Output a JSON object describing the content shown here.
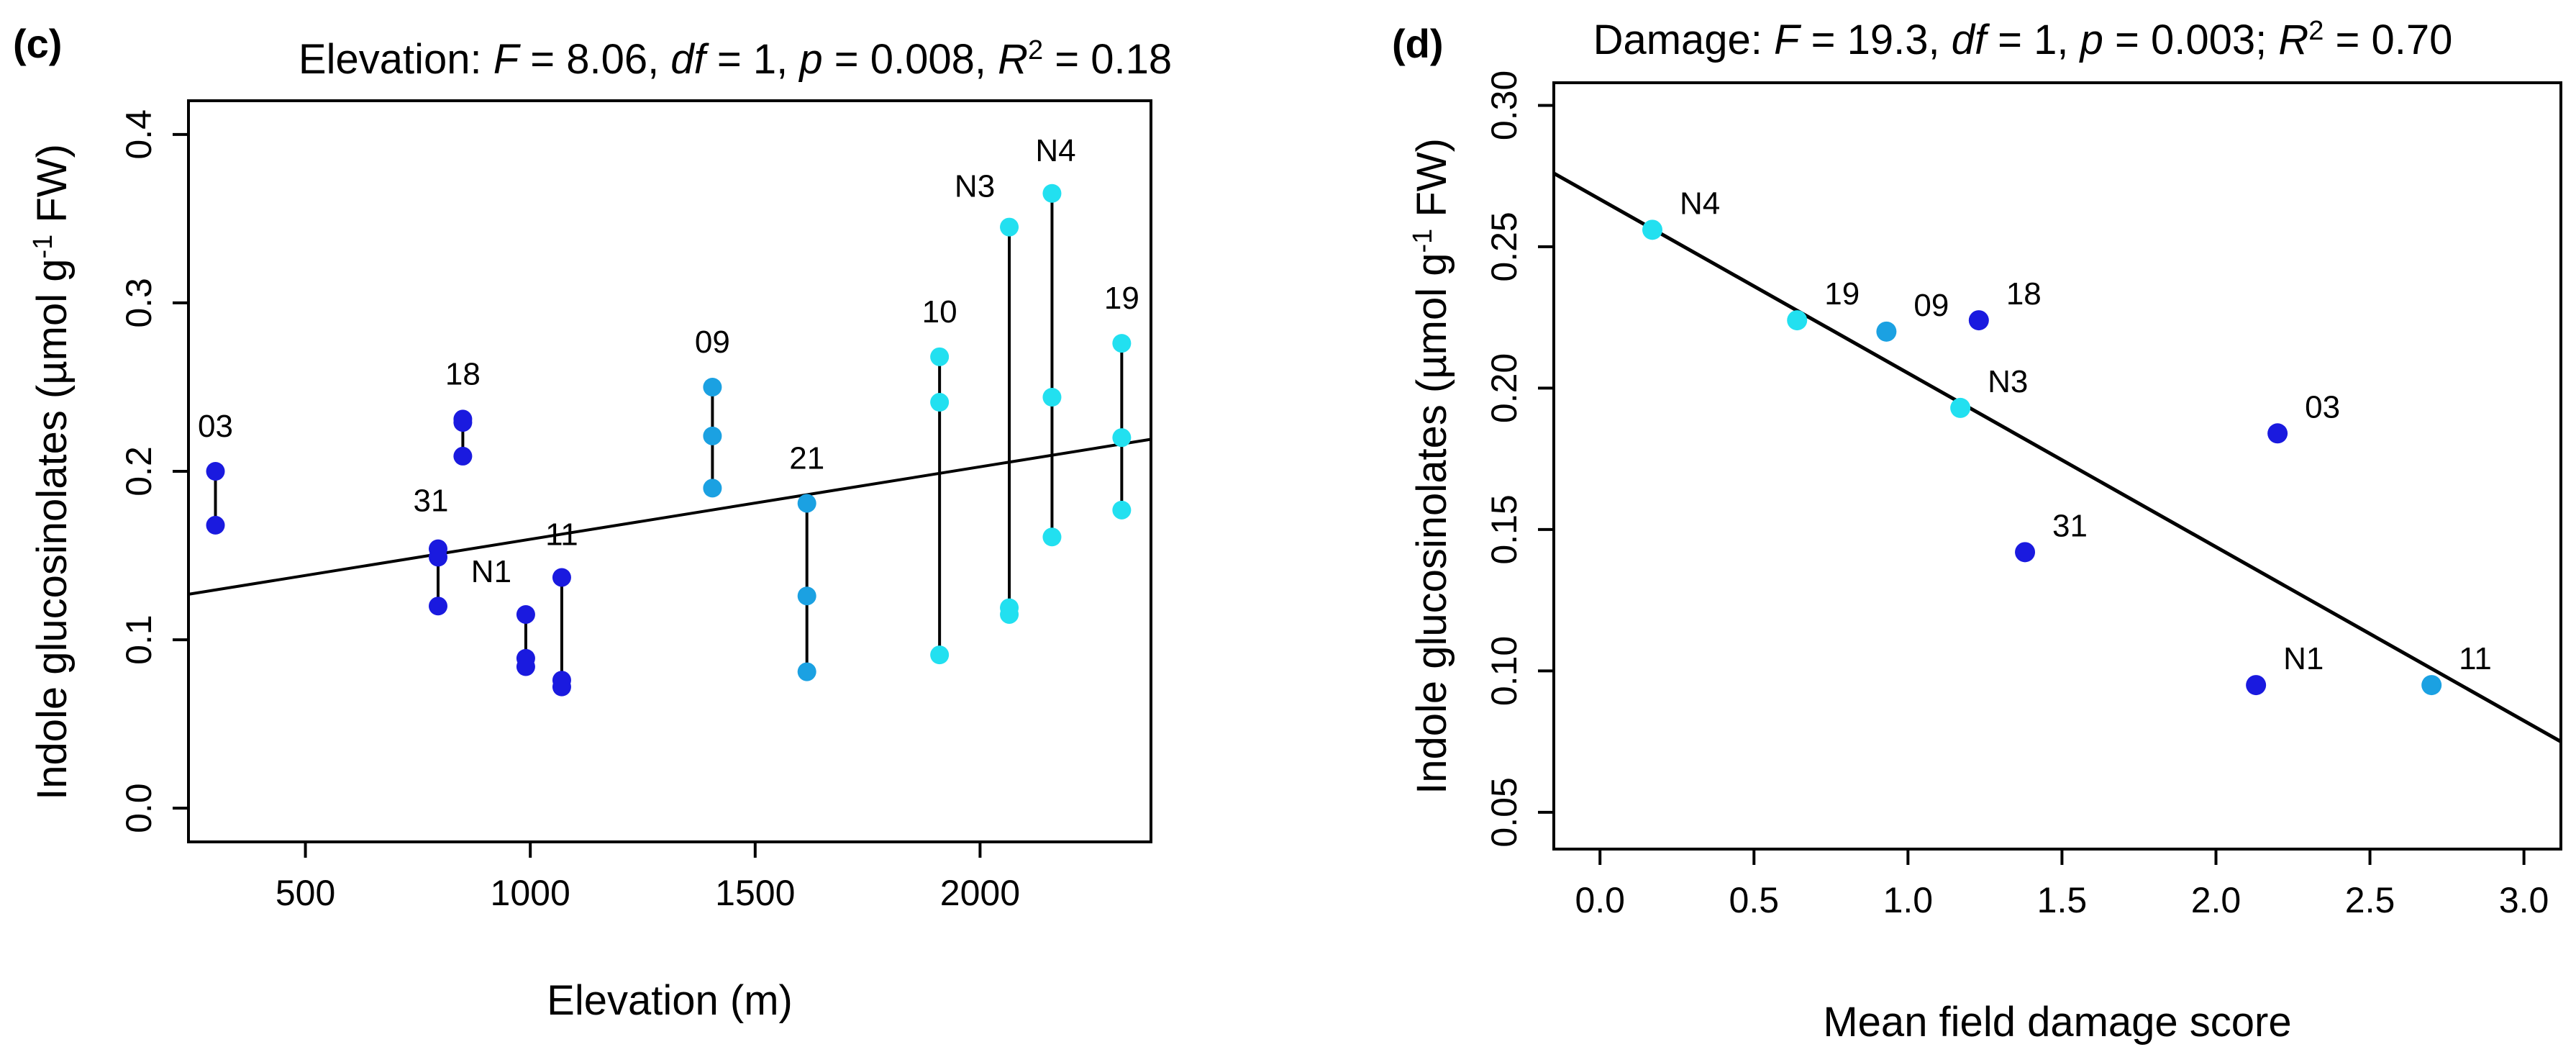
{
  "chart_data": [
    {
      "panel": "(c)",
      "type": "scatter",
      "title": {
        "prefix": "Elevation: ",
        "F_label": "F",
        "F_value": " = 8.06, ",
        "df_label": "df",
        "df_value": " = 1, ",
        "p_label": "p",
        "p_value": " = 0.008, ",
        "R_label": "R",
        "R_sup": "2",
        "R_value": " = 0.18"
      },
      "xlabel": "Elevation (m)",
      "ylabel": {
        "main": "Indole glucosinolates (µmol g",
        "sup": "-1",
        "end": " FW)"
      },
      "xlim": [
        240,
        2380
      ],
      "ylim": [
        -0.02,
        0.42
      ],
      "xticks": [
        500,
        1000,
        1500,
        2000
      ],
      "xtick_labels": [
        "500",
        "1000",
        "1500",
        "2000"
      ],
      "yticks": [
        0.0,
        0.1,
        0.2,
        0.3,
        0.4
      ],
      "ytick_labels": [
        "0.0",
        "0.1",
        "0.2",
        "0.3",
        "0.4"
      ],
      "fit_line": {
        "x": [
          240,
          2380
        ],
        "y": [
          0.127,
          0.219
        ]
      },
      "colors": {
        "dark": "#1a1adf",
        "mid": "#1ba1e2",
        "light": "#22e0f0"
      },
      "sites": [
        {
          "label": "03",
          "x": 300,
          "values": [
            0.2,
            0.168
          ],
          "color": "dark"
        },
        {
          "label": "31",
          "x": 795,
          "values": [
            0.154,
            0.149,
            0.12
          ],
          "color": "dark"
        },
        {
          "label": "18",
          "x": 850,
          "values": [
            0.231,
            0.229,
            0.209
          ],
          "color": "dark"
        },
        {
          "label": "N1",
          "x": 990,
          "values": [
            0.115,
            0.089,
            0.084
          ],
          "color": "dark"
        },
        {
          "label": "11",
          "x": 1070,
          "values": [
            0.137,
            0.076,
            0.072
          ],
          "color": "dark"
        },
        {
          "label": "09",
          "x": 1405,
          "values": [
            0.25,
            0.221,
            0.19
          ],
          "color": "mid"
        },
        {
          "label": "21",
          "x": 1615,
          "values": [
            0.181,
            0.126,
            0.081
          ],
          "color": "mid"
        },
        {
          "label": "10",
          "x": 1910,
          "values": [
            0.268,
            0.241,
            0.091
          ],
          "color": "light"
        },
        {
          "label": "N3",
          "x": 2065,
          "values": [
            0.345,
            0.119,
            0.115
          ],
          "color": "light"
        },
        {
          "label": "N4",
          "x": 2160,
          "values": [
            0.365,
            0.244,
            0.161
          ],
          "color": "light"
        },
        {
          "label": "19",
          "x": 2315,
          "values": [
            0.276,
            0.22,
            0.177
          ],
          "color": "light"
        }
      ]
    },
    {
      "panel": "(d)",
      "type": "scatter",
      "title": {
        "prefix": "Damage: ",
        "F_label": "F",
        "F_value": " = 19.3, ",
        "df_label": "df",
        "df_value": " = 1, ",
        "p_label": "p",
        "p_value": " = 0.003; ",
        "R_label": "R",
        "R_sup": "2",
        "R_value": " = 0.70"
      },
      "xlabel": "Mean field damage score",
      "ylabel": {
        "main": "Indole glucosinolates  (µmol g",
        "sup": "-1",
        "end": " FW)"
      },
      "xlim": [
        -0.15,
        3.12
      ],
      "ylim": [
        0.037,
        0.308
      ],
      "xticks": [
        0.0,
        0.5,
        1.0,
        1.5,
        2.0,
        2.5,
        3.0
      ],
      "xtick_labels": [
        "0.0",
        "0.5",
        "1.0",
        "1.5",
        "2.0",
        "2.5",
        "3.0"
      ],
      "yticks": [
        0.05,
        0.1,
        0.15,
        0.2,
        0.25,
        0.3
      ],
      "ytick_labels": [
        "0.05",
        "0.10",
        "0.15",
        "0.20",
        "0.25",
        "0.30"
      ],
      "fit_line": {
        "x": [
          -0.15,
          3.12
        ],
        "y": [
          0.276,
          0.075
        ]
      },
      "colors": {
        "dark": "#1a1adf",
        "mid": "#1ba1e2",
        "light": "#22e0f0"
      },
      "points": [
        {
          "label": "N4",
          "x": 0.17,
          "y": 0.256,
          "color": "light"
        },
        {
          "label": "19",
          "x": 0.64,
          "y": 0.224,
          "color": "light"
        },
        {
          "label": "09",
          "x": 0.93,
          "y": 0.22,
          "color": "mid"
        },
        {
          "label": "18",
          "x": 1.23,
          "y": 0.224,
          "color": "dark"
        },
        {
          "label": "N3",
          "x": 1.17,
          "y": 0.193,
          "color": "light"
        },
        {
          "label": "03",
          "x": 2.2,
          "y": 0.184,
          "color": "dark"
        },
        {
          "label": "31",
          "x": 1.38,
          "y": 0.142,
          "color": "dark"
        },
        {
          "label": "N1",
          "x": 2.13,
          "y": 0.095,
          "color": "dark"
        },
        {
          "label": "11",
          "x": 2.7,
          "y": 0.095,
          "color": "mid"
        }
      ]
    }
  ]
}
